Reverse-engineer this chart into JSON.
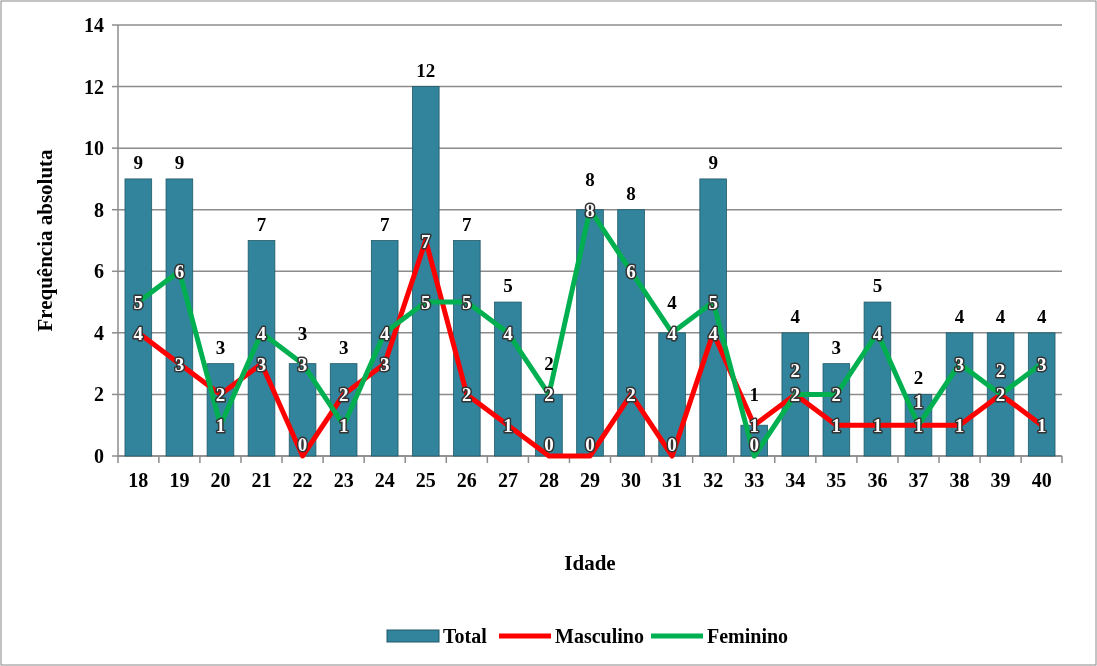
{
  "chart_data": {
    "type": "bar",
    "xlabel": "Idade",
    "ylabel": "Frequência absoluta",
    "categories": [
      "18",
      "19",
      "20",
      "21",
      "22",
      "23",
      "24",
      "25",
      "26",
      "27",
      "28",
      "29",
      "30",
      "31",
      "32",
      "33",
      "34",
      "35",
      "36",
      "37",
      "38",
      "39",
      "40"
    ],
    "series": [
      {
        "name": "Total",
        "color": "#31849b",
        "values": [
          9,
          9,
          3,
          7,
          3,
          3,
          7,
          12,
          7,
          5,
          2,
          8,
          8,
          4,
          9,
          1,
          4,
          3,
          5,
          2,
          4,
          4,
          4
        ]
      },
      {
        "name": "Masculino",
        "type": "line",
        "color": "#ff0000",
        "values": [
          4,
          3,
          2,
          3,
          0,
          2,
          3,
          7,
          2,
          1,
          0,
          0,
          2,
          0,
          4,
          1,
          2,
          1,
          1,
          1,
          1,
          2,
          1
        ]
      },
      {
        "name": "Feminino",
        "type": "line",
        "color": "#00b050",
        "values": [
          5,
          6,
          1,
          4,
          3,
          1,
          4,
          5,
          5,
          4,
          2,
          8,
          6,
          4,
          5,
          0,
          2,
          2,
          4,
          1,
          3,
          2,
          3
        ]
      }
    ],
    "ylim": [
      0,
      14
    ],
    "yticks": [
      0,
      2,
      4,
      6,
      8,
      10,
      12,
      14
    ],
    "grid": "y",
    "legend": "bottom",
    "data_labels": true,
    "marker": "none",
    "line_style": "solid"
  }
}
